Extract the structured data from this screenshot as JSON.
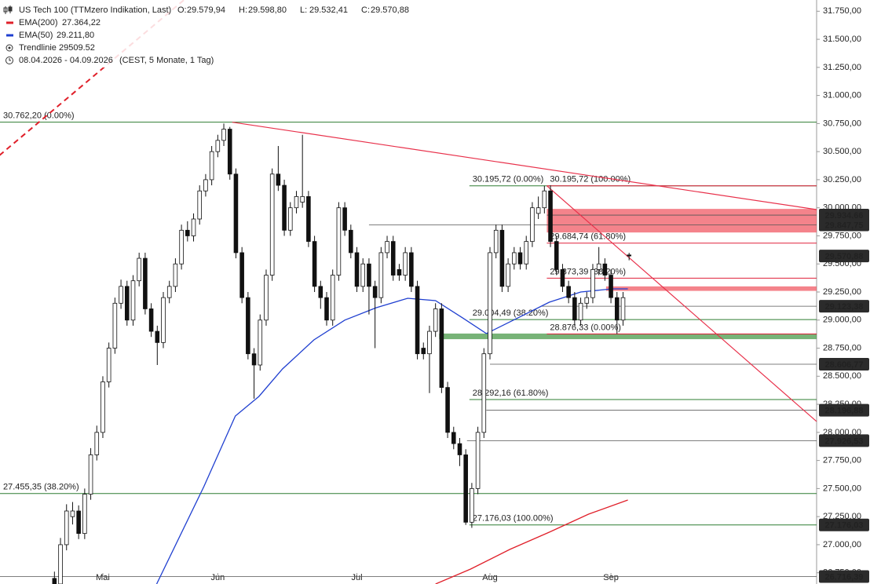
{
  "chart_data": {
    "type": "candlestick",
    "title": "US Tech 100 (TTMzero Indikation, Last)",
    "ohlc_header": [
      {
        "key": "O:",
        "value": "29.579,94"
      },
      {
        "key": "H:",
        "value": "29.598,80"
      },
      {
        "key": "L:",
        "value": "29.532,41"
      },
      {
        "key": "C:",
        "value": "29.570,88"
      }
    ],
    "legend": [
      {
        "name": "EMA(200)",
        "value": "27.364,22",
        "color": "#e0202a"
      },
      {
        "name": "EMA(50)",
        "value": "29.211,80",
        "color": "#1f3fd0"
      },
      {
        "name": "Trendlinie",
        "value": "29509.52"
      }
    ],
    "range_text": "08.04.2026 - 04.09.2026",
    "range_note": "(CEST, 5 Monate, 1 Tag)",
    "xlim": [
      -9,
      126
    ],
    "ylim": [
      26650,
      31850
    ],
    "xticks": [
      {
        "value": 8,
        "label": "Mai"
      },
      {
        "value": 27,
        "label": "Jun"
      },
      {
        "value": 50,
        "label": "Jul"
      },
      {
        "value": 72,
        "label": "Aug"
      },
      {
        "value": 92,
        "label": "Sep"
      }
    ],
    "yticks": [
      {
        "value": 26750,
        "label": "26.750,00"
      },
      {
        "value": 27000,
        "label": "27.000,00"
      },
      {
        "value": 27250,
        "label": "27.250,00"
      },
      {
        "value": 27500,
        "label": "27.500,00"
      },
      {
        "value": 27750,
        "label": "27.750,00"
      },
      {
        "value": 28000,
        "label": "28.000,00"
      },
      {
        "value": 28250,
        "label": "28.250,00"
      },
      {
        "value": 28500,
        "label": "28.500,00"
      },
      {
        "value": 28750,
        "label": "28.750,00"
      },
      {
        "value": 29000,
        "label": "29.000,00"
      },
      {
        "value": 29250,
        "label": "29.250,00"
      },
      {
        "value": 29500,
        "label": "29.500,00"
      },
      {
        "value": 29750,
        "label": "29.750,00"
      },
      {
        "value": 30000,
        "label": "30.000,00"
      },
      {
        "value": 30250,
        "label": "30.250,00"
      },
      {
        "value": 30500,
        "label": "30.500,00"
      },
      {
        "value": 30750,
        "label": "30.750,00"
      },
      {
        "value": 31000,
        "label": "31.000,00"
      },
      {
        "value": 31250,
        "label": "31.250,00"
      },
      {
        "value": 31500,
        "label": "31.500,00"
      },
      {
        "value": 31750,
        "label": "31.750,00"
      }
    ],
    "candles": [
      [
        26700,
        26760,
        26600,
        26650
      ],
      [
        26650,
        27060,
        26600,
        27000
      ],
      [
        27000,
        27360,
        26950,
        27300
      ],
      [
        27250,
        27380,
        27180,
        27300
      ],
      [
        27300,
        27350,
        27050,
        27100
      ],
      [
        27100,
        27500,
        27050,
        27450
      ],
      [
        27450,
        27860,
        27400,
        27800
      ],
      [
        27800,
        28060,
        27750,
        28000
      ],
      [
        28000,
        28500,
        27950,
        28450
      ],
      [
        28450,
        28800,
        28400,
        28750
      ],
      [
        28750,
        29200,
        28700,
        29150
      ],
      [
        29150,
        29360,
        29100,
        29300
      ],
      [
        29300,
        29350,
        28950,
        29000
      ],
      [
        29000,
        29400,
        28950,
        29350
      ],
      [
        29350,
        29600,
        29300,
        29550
      ],
      [
        29550,
        29600,
        29050,
        29100
      ],
      [
        29100,
        29150,
        28850,
        28900
      ],
      [
        28900,
        28950,
        28600,
        28800
      ],
      [
        28800,
        29250,
        28750,
        29200
      ],
      [
        29200,
        29350,
        29150,
        29300
      ],
      [
        29300,
        29550,
        29250,
        29500
      ],
      [
        29500,
        29850,
        29450,
        29800
      ],
      [
        29800,
        29880,
        29700,
        29750
      ],
      [
        29750,
        29950,
        29700,
        29900
      ],
      [
        29900,
        30200,
        29850,
        30150
      ],
      [
        30150,
        30300,
        30100,
        30250
      ],
      [
        30250,
        30550,
        30200,
        30500
      ],
      [
        30500,
        30650,
        30450,
        30600
      ],
      [
        30600,
        30750,
        30550,
        30700
      ],
      [
        30700,
        30720,
        30250,
        30300
      ],
      [
        30300,
        30350,
        29550,
        29600
      ],
      [
        29600,
        29650,
        29150,
        29200
      ],
      [
        29200,
        29250,
        28650,
        28700
      ],
      [
        28700,
        28750,
        28300,
        28600
      ],
      [
        28600,
        29050,
        28550,
        29000
      ],
      [
        29000,
        29450,
        28950,
        29400
      ],
      [
        29400,
        30350,
        29350,
        30300
      ],
      [
        30300,
        30550,
        30150,
        30200
      ],
      [
        30200,
        30250,
        29750,
        29800
      ],
      [
        29800,
        30050,
        29750,
        30000
      ],
      [
        30000,
        30150,
        29950,
        30100
      ],
      [
        30050,
        30650,
        30000,
        30100
      ],
      [
        30100,
        30150,
        29650,
        29700
      ],
      [
        29700,
        29750,
        29250,
        29300
      ],
      [
        29300,
        29350,
        29100,
        29200
      ],
      [
        29200,
        29250,
        28950,
        29000
      ],
      [
        29000,
        29450,
        28950,
        29400
      ],
      [
        29400,
        30050,
        29350,
        30000
      ],
      [
        30000,
        30050,
        29750,
        29800
      ],
      [
        29800,
        29850,
        29550,
        29600
      ],
      [
        29600,
        29650,
        29250,
        29300
      ],
      [
        29300,
        29550,
        29250,
        29500
      ],
      [
        29500,
        29550,
        29050,
        29300
      ],
      [
        29300,
        29350,
        28750,
        29200
      ],
      [
        29200,
        29650,
        29150,
        29600
      ],
      [
        29600,
        29750,
        29550,
        29700
      ],
      [
        29700,
        29750,
        29350,
        29400
      ],
      [
        29450,
        29500,
        29350,
        29400
      ],
      [
        29400,
        29650,
        29350,
        29600
      ],
      [
        29600,
        29650,
        29250,
        29300
      ],
      [
        29300,
        29350,
        28650,
        28700
      ],
      [
        28750,
        28800,
        28650,
        28700
      ],
      [
        28700,
        28950,
        28350,
        28900
      ],
      [
        28900,
        29150,
        28850,
        29100
      ],
      [
        29100,
        29150,
        28350,
        28400
      ],
      [
        28400,
        28450,
        27950,
        28000
      ],
      [
        28000,
        28050,
        27850,
        27900
      ],
      [
        27900,
        27950,
        27700,
        27800
      ],
      [
        27800,
        27850,
        27176.03,
        27200
      ],
      [
        27200,
        27550,
        27150,
        27500
      ],
      [
        27500,
        28050,
        27450,
        28000
      ],
      [
        28000,
        28750,
        27950,
        28700
      ],
      [
        28700,
        29650,
        28650,
        29600
      ],
      [
        29600,
        29850,
        29550,
        29800
      ],
      [
        29800,
        29850,
        29250,
        29300
      ],
      [
        29300,
        29550,
        29250,
        29500
      ],
      [
        29500,
        29650,
        29450,
        29600
      ],
      [
        29600,
        29650,
        29450,
        29500
      ],
      [
        29500,
        29750,
        29450,
        29700
      ],
      [
        29700,
        30050,
        29650,
        30000
      ],
      [
        29950,
        30100,
        29900,
        30000
      ],
      [
        30000,
        30195.72,
        29950,
        30150
      ],
      [
        30150,
        30200,
        29650,
        29700
      ],
      [
        29700,
        29750,
        29400,
        29450
      ],
      [
        29450,
        29500,
        29250,
        29300
      ],
      [
        29300,
        29350,
        29150,
        29200
      ],
      [
        29200,
        29250,
        28950,
        29000
      ],
      [
        29000,
        29200,
        28950,
        29150
      ],
      [
        29150,
        29250,
        29100,
        29200
      ],
      [
        29200,
        29500,
        29150,
        29450
      ],
      [
        29450,
        29650,
        29400,
        29500
      ],
      [
        29500,
        29550,
        29350,
        29400
      ],
      [
        29400,
        29450,
        29150,
        29200
      ],
      [
        29200,
        29250,
        28876.33,
        29000
      ],
      [
        29000,
        29250,
        28950,
        29200
      ],
      [
        29579.94,
        29598.8,
        29532.41,
        29570.88
      ]
    ],
    "series": [
      {
        "name": "EMA(50)",
        "color": "#1f3fd0",
        "x": [
          16.9,
          24.7,
          29.9,
          33.8,
          37.7,
          42.9,
          48,
          53.2,
          58.4,
          63,
          67.5,
          71.4,
          76.6,
          81.8,
          87,
          92.2,
          94.8
        ],
        "values": [
          26650,
          27517,
          28146,
          28320,
          28565,
          28824,
          29000,
          29110,
          29194,
          29173,
          29019,
          28880,
          29019,
          29159,
          29250,
          29278,
          29278
        ]
      },
      {
        "name": "EMA(200)",
        "color": "#e0202a",
        "x": [
          63,
          68.8,
          75.3,
          81.8,
          88.3,
          94.8
        ],
        "values": [
          26650,
          26783,
          26958,
          27111,
          27272,
          27398
        ]
      }
    ],
    "trendlines": [
      {
        "x": [
          29.4,
          126
        ],
        "values": [
          30762,
          29984
        ],
        "color": "#e8304a",
        "dash": false
      },
      {
        "x": [
          81.4,
          126
        ],
        "values": [
          30195.72,
          28097
        ],
        "color": "#e8304a",
        "dash": false
      },
      {
        "x": [
          -9.1,
          21.4
        ],
        "values": [
          30466,
          31850
        ],
        "color": "#e0202a",
        "dash": true
      }
    ],
    "levels": [
      {
        "value": 30762.2,
        "label": "30.762,20 (0.00%)",
        "color": "#2e7d32",
        "from": -9
      },
      {
        "value": 27455.35,
        "label": "27.455,35 (38.20%)",
        "color": "#2e7d32",
        "from": -9
      },
      {
        "value": 27176.03,
        "label": "27.176,03 (100.00%)",
        "color": "#2e7d32",
        "from": 68.6
      },
      {
        "value": 29004.49,
        "label": "29.004,49 (38.20%)",
        "color": "#2e7d32",
        "from": 68.6
      },
      {
        "value": 28292.16,
        "label": "28.292,16 (61.80%)",
        "color": "#2e7d32",
        "from": 68.6
      },
      {
        "value": 30195.72,
        "label": "30.195,72 (0.00%)",
        "color": "#2e7d32",
        "from": 68.6
      },
      {
        "value": 30195.72,
        "label": "30.195,72 (100.00%)",
        "color": "#e0203a",
        "from": 81.4
      },
      {
        "value": 29684.74,
        "label": "29.684,74 (61.80%)",
        "color": "#e0203a",
        "from": 81.4
      },
      {
        "value": 29373.39,
        "label": "29.373,39 (38.20%)",
        "color": "#e0203a",
        "from": 81.4
      },
      {
        "value": 28876.33,
        "label": "28.876,33 (0.00%)",
        "color": "#e0203a",
        "from": 81.4
      }
    ],
    "zones": [
      {
        "values": [
          29780,
          29990
        ],
        "from": 81.4,
        "color": "#f05a64"
      },
      {
        "values": [
          29260,
          29300
        ],
        "from": 91.2,
        "color": "#f05a64"
      },
      {
        "values": [
          28830,
          28880
        ],
        "from": 63.6,
        "color": "#4a9a4a"
      }
    ],
    "price_labels": [
      {
        "value": 29934.66,
        "label": "29.934,66",
        "from": 81.4
      },
      {
        "value": 29847.75,
        "label": "29.847,75",
        "from": 52
      },
      {
        "value": 29570.88,
        "label": "29.570,88",
        "from": 126
      },
      {
        "value": 29123.38,
        "label": "29.123,38",
        "from": 80.5
      },
      {
        "value": 28606.77,
        "label": "28.606,77",
        "from": 72
      },
      {
        "value": 28196.88,
        "label": "28.196,88",
        "from": 71.4
      },
      {
        "value": 27926.53,
        "label": "27.926,53",
        "from": 68.2
      },
      {
        "value": 27176.03,
        "label": "27.176,03",
        "from": 126
      },
      {
        "value": 26716.39,
        "label": "26.716,39",
        "from": -9
      }
    ]
  }
}
